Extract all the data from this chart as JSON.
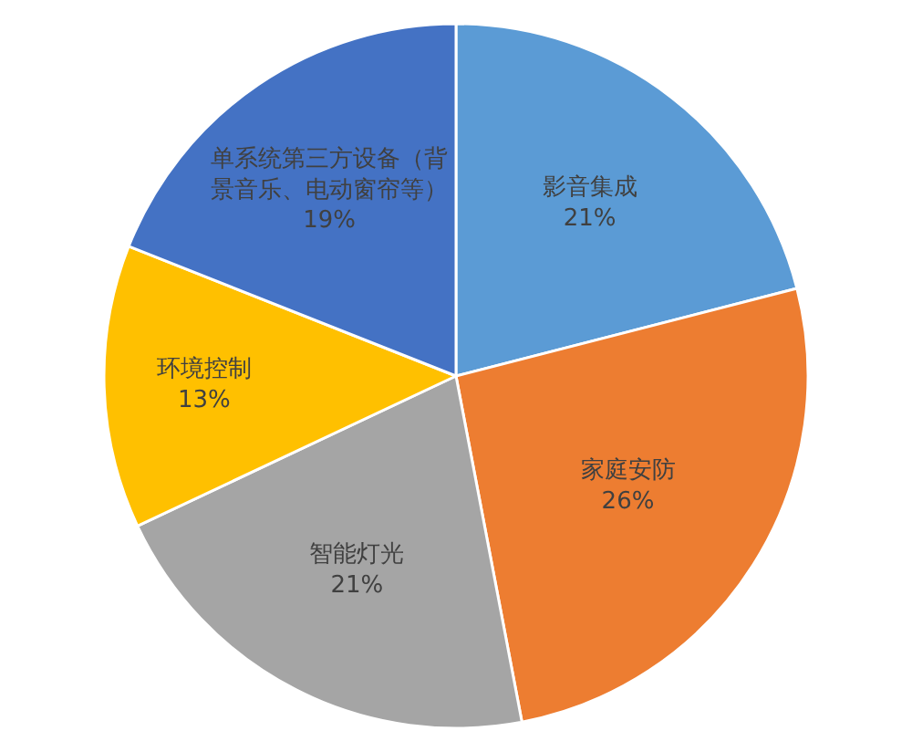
{
  "chart_data": {
    "type": "pie",
    "categories": [
      "影音集成",
      "家庭安防",
      "智能灯光",
      "环境控制",
      "单系统第三方设备（背景音乐、电动窗帘等）"
    ],
    "values": [
      21,
      26,
      21,
      13,
      19
    ],
    "value_labels": [
      "21%",
      "26%",
      "21%",
      "13%",
      "19%"
    ],
    "colors": [
      "#5b9bd5",
      "#ed7d31",
      "#a5a5a5",
      "#ffc000",
      "#4472c4"
    ],
    "legend": false
  }
}
